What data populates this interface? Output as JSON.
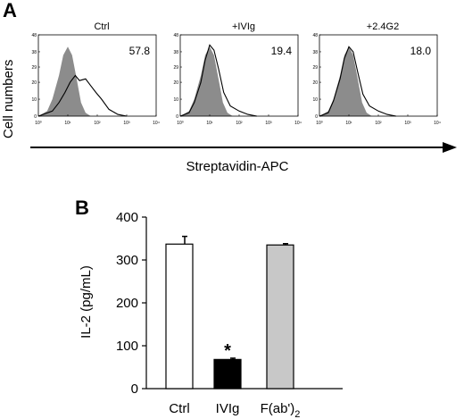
{
  "panelA": {
    "letter": "A",
    "ylabel": "Cell numbers",
    "xlabel": "Streptavidin-APC",
    "yticks": [
      "0",
      "10",
      "20",
      "29",
      "38",
      "48"
    ],
    "xticks": [
      "10⁰",
      "10¹",
      "10²",
      "10³",
      "10⁴"
    ],
    "histograms": [
      {
        "title": "Ctrl",
        "value": "57.8"
      },
      {
        "title": "+IVIg",
        "value": "19.4"
      },
      {
        "title": "+2.4G2",
        "value": "18.0"
      }
    ]
  },
  "panelB": {
    "letter": "B",
    "asterisk": "*",
    "sub": "2"
  },
  "colors": {
    "filled_hist": "#8c8c8c",
    "ctrl_bar": "#ffffff",
    "ivig_bar": "#000000",
    "fab_bar": "#c8c8c8"
  },
  "chart_data": [
    {
      "type": "area",
      "panel": "A",
      "xscale": "log",
      "xlim": [
        1,
        10000
      ],
      "ylim": [
        0,
        48
      ],
      "ylabel": "Cell numbers",
      "xlabel": "Streptavidin-APC",
      "histograms": [
        {
          "title": "Ctrl",
          "value": "57.8",
          "filled": {
            "x": [
              1,
              2,
              3,
              5,
              7,
              10,
              14,
              20,
              28,
              40,
              60
            ],
            "y": [
              0,
              3,
              10,
              24,
              36,
              41,
              36,
              22,
              8,
              2,
              0
            ]
          },
          "open": {
            "x": [
              1,
              3,
              5,
              8,
              12,
              18,
              25,
              40,
              60,
              90,
              140,
              250,
              500,
              1000
            ],
            "y": [
              0,
              3,
              8,
              14,
              20,
              24,
              21,
              22,
              18,
              14,
              10,
              4,
              1,
              0
            ]
          }
        },
        {
          "title": "+IVIg",
          "value": "19.4",
          "filled": {
            "x": [
              1,
              2,
              3,
              5,
              7,
              10,
              14,
              20,
              28,
              40,
              60
            ],
            "y": [
              0,
              3,
              10,
              24,
              36,
              41,
              36,
              22,
              8,
              2,
              0
            ]
          },
          "open": {
            "x": [
              1,
              2,
              3,
              5,
              7,
              10,
              14,
              20,
              30,
              50,
              100,
              200,
              400
            ],
            "y": [
              0,
              2,
              8,
              20,
              33,
              42,
              39,
              28,
              14,
              6,
              3,
              1,
              0
            ]
          }
        },
        {
          "title": "+2.4G2",
          "value": "18.0",
          "filled": {
            "x": [
              1,
              2,
              3,
              5,
              7,
              10,
              14,
              20,
              28,
              40,
              60
            ],
            "y": [
              0,
              3,
              10,
              24,
              36,
              41,
              36,
              22,
              8,
              2,
              0
            ]
          },
          "open": {
            "x": [
              1,
              2,
              3,
              5,
              7,
              10,
              14,
              20,
              30,
              50,
              100,
              200,
              400
            ],
            "y": [
              0,
              2,
              9,
              22,
              34,
              41,
              38,
              26,
              13,
              6,
              3,
              1,
              0
            ]
          }
        }
      ]
    },
    {
      "type": "bar",
      "panel": "B",
      "ylabel": "IL-2 (pg/mL)",
      "ylim": [
        0,
        400
      ],
      "yticks": [
        0,
        100,
        200,
        300,
        400
      ],
      "categories": [
        "Ctrl",
        "IVIg",
        "F(ab')"
      ],
      "values": [
        337,
        68,
        335
      ],
      "errors": [
        18,
        3,
        3
      ]
    }
  ]
}
